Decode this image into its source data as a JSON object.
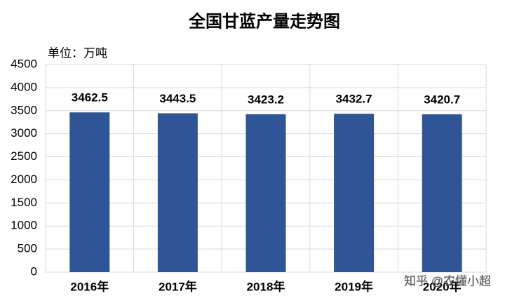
{
  "chart_data": {
    "type": "bar",
    "title": "全国甘蓝产量走势图",
    "unit_label": "单位：万吨",
    "categories": [
      "2016年",
      "2017年",
      "2018年",
      "2019年",
      "2020年"
    ],
    "values": [
      3462.5,
      3443.5,
      3423.2,
      3432.7,
      3420.7
    ],
    "color": "#2f5597",
    "ylim": [
      0,
      4500
    ],
    "yticks": [
      0,
      500,
      1000,
      1500,
      2000,
      2500,
      3000,
      3500,
      4000,
      4500
    ],
    "grid": true,
    "watermark": "知乎 @农懂小超"
  }
}
